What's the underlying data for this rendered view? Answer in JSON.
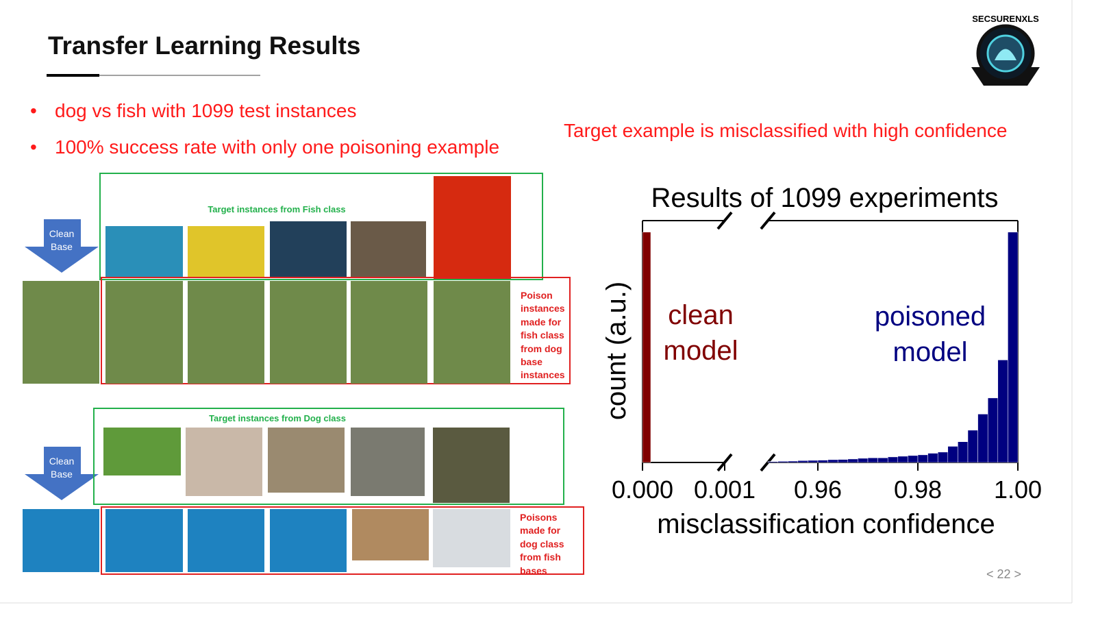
{
  "header": {
    "title": "Transfer Learning Results",
    "logo": "SECSURENXLS"
  },
  "bullets": [
    "dog vs fish with 1099 test instances",
    "100% success rate with only one poisoning example"
  ],
  "caption": "Target example is misclassified with high confidence",
  "figure": {
    "top": {
      "arrow": "Clean Base",
      "target_label": "Target instances from Fish class",
      "poison_label": "Poison instances made for fish class from dog base instances"
    },
    "bottom": {
      "arrow": "Clean Base",
      "target_label": "Target instances from Dog class",
      "poison_label": "Poisons made for dog class from fish bases"
    }
  },
  "page_number": "< 22 >",
  "chart_data": {
    "type": "histogram",
    "title": "Results of 1099 experiments",
    "x_label": "misclassification confidence",
    "y_label": "count (a.u.)",
    "xlim_segments": [
      [
        0,
        0.001
      ],
      [
        0.95,
        1
      ]
    ],
    "xticks": [
      {
        "value": 0,
        "label": "0.000"
      },
      0.001,
      0.96,
      0.98,
      {
        "value": 1,
        "label": "1.00"
      }
    ],
    "ylim": [
      0,
      1.05
    ],
    "series": [
      {
        "name": "clean model",
        "color": "#800000",
        "bins": [
          0,
          0.0001
        ],
        "values": [
          1
        ]
      },
      {
        "name": "poisoned model",
        "color": "#000080",
        "bins": [
          0.95,
          0.952,
          0.954,
          0.956,
          0.958,
          0.96,
          0.962,
          0.964,
          0.966,
          0.968,
          0.97,
          0.972,
          0.974,
          0.976,
          0.978,
          0.98,
          0.982,
          0.984,
          0.986,
          0.988,
          0.99,
          0.992,
          0.994,
          0.996,
          0.998,
          1
        ],
        "values": [
          0.004,
          0.005,
          0.006,
          0.008,
          0.009,
          0.01,
          0.012,
          0.013,
          0.015,
          0.018,
          0.02,
          0.02,
          0.024,
          0.027,
          0.03,
          0.033,
          0.04,
          0.045,
          0.07,
          0.09,
          0.14,
          0.21,
          0.28,
          0.445,
          1.0
        ]
      }
    ]
  }
}
